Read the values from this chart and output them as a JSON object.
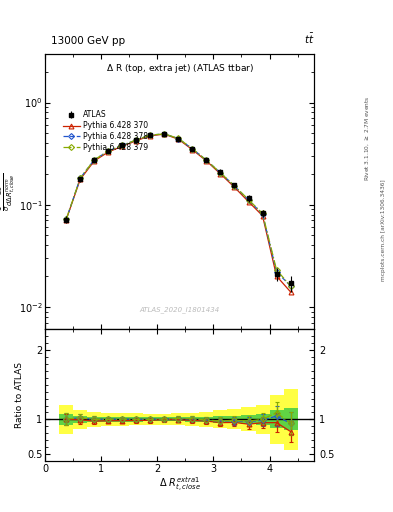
{
  "title_top": "13000 GeV pp",
  "title_top_right": "t$\\bar{t}$",
  "plot_title": "$\\Delta$ R (top, extra jet) (ATLAS ttbar)",
  "xlabel": "$\\Delta$ $R^{extra1}_{t,close}$",
  "ylabel": "$\\frac{1}{\\sigma}\\frac{d\\sigma}{d\\Delta R_{t,close}^{norm}}$",
  "ylabel_ratio": "Ratio to ATLAS",
  "right_label_top": "Rivet 3.1.10, $\\geq$ 2.7M events",
  "right_label_bot": "mcplots.cern.ch [arXiv:1306.3436]",
  "watermark": "ATLAS_2020_I1801434",
  "xlim": [
    0.0,
    4.8
  ],
  "ylim_main": [
    0.006,
    3.0
  ],
  "ylim_ratio": [
    0.4,
    2.3
  ],
  "x": [
    0.375,
    0.625,
    0.875,
    1.125,
    1.375,
    1.625,
    1.875,
    2.125,
    2.375,
    2.625,
    2.875,
    3.125,
    3.375,
    3.625,
    3.875,
    4.125,
    4.375
  ],
  "bw": 0.25,
  "atlas_y": [
    0.0715,
    0.178,
    0.275,
    0.335,
    0.38,
    0.43,
    0.48,
    0.49,
    0.44,
    0.35,
    0.275,
    0.21,
    0.155,
    0.115,
    0.082,
    0.021,
    0.017
  ],
  "atlas_yerr": [
    0.006,
    0.01,
    0.012,
    0.013,
    0.014,
    0.015,
    0.016,
    0.016,
    0.015,
    0.013,
    0.012,
    0.011,
    0.009,
    0.008,
    0.007,
    0.003,
    0.003
  ],
  "py370_y": [
    0.0715,
    0.177,
    0.268,
    0.328,
    0.373,
    0.423,
    0.473,
    0.49,
    0.437,
    0.345,
    0.268,
    0.2,
    0.148,
    0.107,
    0.078,
    0.02,
    0.014
  ],
  "py378_y": [
    0.0718,
    0.182,
    0.275,
    0.335,
    0.381,
    0.43,
    0.48,
    0.493,
    0.443,
    0.352,
    0.272,
    0.205,
    0.152,
    0.111,
    0.081,
    0.022,
    0.016
  ],
  "py379_y": [
    0.0718,
    0.182,
    0.275,
    0.335,
    0.381,
    0.43,
    0.48,
    0.493,
    0.445,
    0.353,
    0.272,
    0.205,
    0.153,
    0.112,
    0.082,
    0.023,
    0.016
  ],
  "py370_color": "#cc2200",
  "py378_color": "#2255cc",
  "py379_color": "#88aa00",
  "green_rel": 0.1,
  "yellow_rel": 0.28
}
